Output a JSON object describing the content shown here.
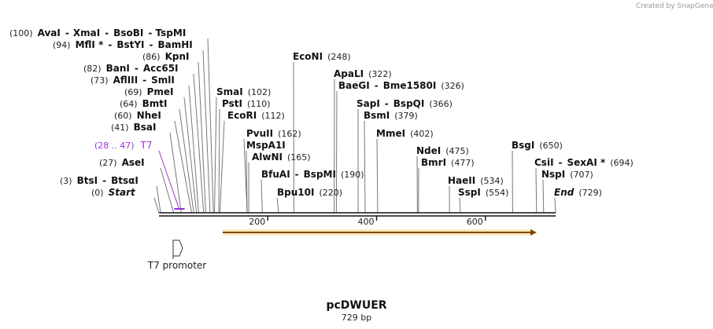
{
  "credit": "Created by SnapGene",
  "plasmid": {
    "name": "pcDWUER",
    "length_label": "729 bp",
    "length": 729
  },
  "ruler": {
    "ticks": [
      {
        "value": 200,
        "label": "200"
      },
      {
        "value": 400,
        "label": "400"
      },
      {
        "value": 600,
        "label": "600"
      }
    ]
  },
  "features": [
    {
      "name": "T7 promoter",
      "type": "promoter"
    },
    {
      "name": "orf",
      "type": "orf",
      "color": "#f5a623"
    }
  ],
  "primer_site": {
    "label": "T7",
    "range_label": "(28 .. 47)",
    "color": "#9b30d9"
  },
  "sites": [
    {
      "label_row": [
        {
          "pos": "(100)"
        },
        {
          "name": "AvaI"
        },
        {
          "sep": "-"
        },
        {
          "name": "XmaI"
        },
        {
          "sep": "-"
        },
        {
          "name": "BsoBI"
        },
        {
          "sep": "-"
        },
        {
          "name": "TspMI"
        }
      ]
    },
    {
      "label_row": [
        {
          "pos": "(94)"
        },
        {
          "name": "MflI *"
        },
        {
          "sep": "-"
        },
        {
          "name": "BstYI"
        },
        {
          "sep": "-"
        },
        {
          "name": "BamHI"
        }
      ]
    },
    {
      "label_row": [
        {
          "pos": "(86)"
        },
        {
          "name": "KpnI"
        }
      ]
    },
    {
      "label_row": [
        {
          "pos": "(82)"
        },
        {
          "name": "BanI"
        },
        {
          "sep": "-"
        },
        {
          "name": "Acc65I"
        }
      ]
    },
    {
      "label_row": [
        {
          "pos": "(73)"
        },
        {
          "name": "AflIII"
        },
        {
          "sep": "-"
        },
        {
          "name": "SmlI"
        }
      ]
    },
    {
      "label_row": [
        {
          "pos": "(69)"
        },
        {
          "name": "PmeI"
        }
      ]
    },
    {
      "label_row": [
        {
          "pos": "(64)"
        },
        {
          "name": "BmtI"
        }
      ]
    },
    {
      "label_row": [
        {
          "pos": "(60)"
        },
        {
          "name": "NheI"
        }
      ]
    },
    {
      "label_row": [
        {
          "pos": "(41)"
        },
        {
          "name": "BsaI"
        }
      ]
    },
    {
      "label_row": [
        {
          "pos": "(27)"
        },
        {
          "name": "AseI"
        }
      ]
    },
    {
      "label_row": [
        {
          "pos": "(3)"
        },
        {
          "name": "BtsI"
        },
        {
          "sep": "-"
        },
        {
          "name": "BtsαI"
        }
      ]
    },
    {
      "label_row": [
        {
          "pos": "(0)"
        },
        {
          "name": "Start",
          "italic": true
        }
      ]
    },
    {
      "label_row": [
        {
          "name": "SmaI"
        },
        {
          "pos": "(102)"
        }
      ]
    },
    {
      "label_row": [
        {
          "name": "PstI"
        },
        {
          "pos": "(110)"
        }
      ]
    },
    {
      "label_row": [
        {
          "name": "EcoRI"
        },
        {
          "pos": "(112)"
        }
      ]
    },
    {
      "label_row": [
        {
          "name": "PvuII"
        },
        {
          "pos": "(162)"
        }
      ]
    },
    {
      "label_row": [
        {
          "name": "MspA1I"
        }
      ]
    },
    {
      "label_row": [
        {
          "name": "AlwNI"
        },
        {
          "pos": "(165)"
        }
      ]
    },
    {
      "label_row": [
        {
          "name": "BfuAI"
        },
        {
          "sep": "-"
        },
        {
          "name": "BspMI"
        },
        {
          "pos": "(190)"
        }
      ]
    },
    {
      "label_row": [
        {
          "name": "Bpu10I"
        },
        {
          "pos": "(220)"
        }
      ]
    },
    {
      "label_row": [
        {
          "name": "EcoNI"
        },
        {
          "pos": "(248)"
        }
      ]
    },
    {
      "label_row": [
        {
          "name": "ApaLI"
        },
        {
          "pos": "(322)"
        }
      ]
    },
    {
      "label_row": [
        {
          "name": "BaeGI"
        },
        {
          "sep": "-"
        },
        {
          "name": "Bme1580I"
        },
        {
          "pos": "(326)"
        }
      ]
    },
    {
      "label_row": [
        {
          "name": "SapI"
        },
        {
          "sep": "-"
        },
        {
          "name": "BspQI"
        },
        {
          "pos": "(366)"
        }
      ]
    },
    {
      "label_row": [
        {
          "name": "BsmI"
        },
        {
          "pos": "(379)"
        }
      ]
    },
    {
      "label_row": [
        {
          "name": "MmeI"
        },
        {
          "pos": "(402)"
        }
      ]
    },
    {
      "label_row": [
        {
          "name": "NdeI"
        },
        {
          "pos": "(475)"
        }
      ]
    },
    {
      "label_row": [
        {
          "name": "BmrI"
        },
        {
          "pos": "(477)"
        }
      ]
    },
    {
      "label_row": [
        {
          "name": "HaeII"
        },
        {
          "pos": "(534)"
        }
      ]
    },
    {
      "label_row": [
        {
          "name": "SspI"
        },
        {
          "pos": "(554)"
        }
      ]
    },
    {
      "label_row": [
        {
          "name": "BsgI"
        },
        {
          "pos": "(650)"
        }
      ]
    },
    {
      "label_row": [
        {
          "name": "CsiI"
        },
        {
          "sep": "-"
        },
        {
          "name": "SexAI *"
        },
        {
          "pos": "(694)"
        }
      ]
    },
    {
      "label_row": [
        {
          "name": "NspI"
        },
        {
          "pos": "(707)"
        }
      ]
    },
    {
      "label_row": [
        {
          "name": "End",
          "italic": true
        },
        {
          "pos": "(729)"
        }
      ]
    }
  ]
}
